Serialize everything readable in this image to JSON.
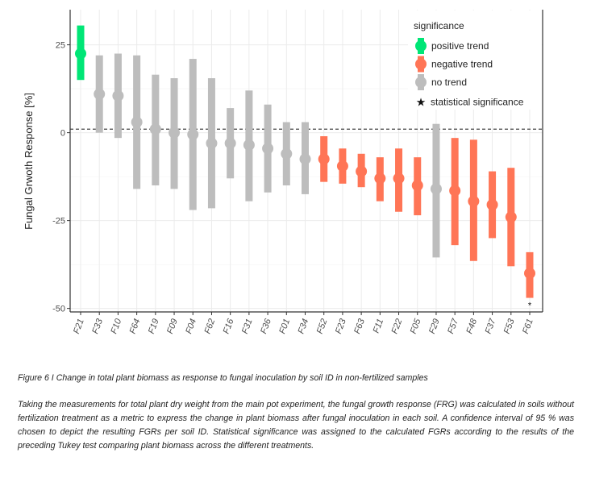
{
  "chart_data": {
    "type": "errorbar",
    "ylabel": "Fungal Grwoth Response [%]",
    "xlabel": "",
    "ylim": [
      -51,
      35
    ],
    "yticks": [
      25,
      0,
      -25,
      -50
    ],
    "reference_line": 1,
    "grid": true,
    "legend_title": "significance",
    "legend_position": "top-right",
    "legend": [
      {
        "label": "positive trend",
        "key": "positive",
        "color": "#00e676"
      },
      {
        "label": "negative trend",
        "key": "negative",
        "color": "#ff7556"
      },
      {
        "label": "no trend",
        "key": "none",
        "color": "#bdbdbd"
      },
      {
        "label": "statistical significance",
        "key": "star",
        "symbol": "★"
      }
    ],
    "points": [
      {
        "id": "F21",
        "mean": 22.5,
        "low": 15,
        "high": 30.5,
        "trend": "positive"
      },
      {
        "id": "F33",
        "mean": 11,
        "low": 0,
        "high": 22,
        "trend": "none"
      },
      {
        "id": "F10",
        "mean": 10.5,
        "low": -1.5,
        "high": 22.5,
        "trend": "none"
      },
      {
        "id": "F64",
        "mean": 3,
        "low": -16,
        "high": 22,
        "trend": "none"
      },
      {
        "id": "F19",
        "mean": 1,
        "low": -15,
        "high": 16.5,
        "trend": "none"
      },
      {
        "id": "F09",
        "mean": 0,
        "low": -16,
        "high": 15.5,
        "trend": "none"
      },
      {
        "id": "F04",
        "mean": -0.5,
        "low": -22,
        "high": 21,
        "trend": "none"
      },
      {
        "id": "F62",
        "mean": -3,
        "low": -21.5,
        "high": 15.5,
        "trend": "none"
      },
      {
        "id": "F16",
        "mean": -3,
        "low": -13,
        "high": 7,
        "trend": "none"
      },
      {
        "id": "F31",
        "mean": -3.5,
        "low": -19.5,
        "high": 12,
        "trend": "none"
      },
      {
        "id": "F36",
        "mean": -4.5,
        "low": -17,
        "high": 8,
        "trend": "none"
      },
      {
        "id": "F01",
        "mean": -6,
        "low": -15,
        "high": 3,
        "trend": "none"
      },
      {
        "id": "F34",
        "mean": -7.5,
        "low": -17.5,
        "high": 3,
        "trend": "none"
      },
      {
        "id": "F52",
        "mean": -7.5,
        "low": -14,
        "high": -1,
        "trend": "negative"
      },
      {
        "id": "F23",
        "mean": -9.5,
        "low": -14.5,
        "high": -4.5,
        "trend": "negative"
      },
      {
        "id": "F63",
        "mean": -11,
        "low": -15.5,
        "high": -6,
        "trend": "negative"
      },
      {
        "id": "F11",
        "mean": -13,
        "low": -19.5,
        "high": -7,
        "trend": "negative"
      },
      {
        "id": "F22",
        "mean": -13,
        "low": -22.5,
        "high": -4.5,
        "trend": "negative"
      },
      {
        "id": "F05",
        "mean": -15,
        "low": -23.5,
        "high": -7,
        "trend": "negative"
      },
      {
        "id": "F29",
        "mean": -16,
        "low": -35.5,
        "high": 2.5,
        "trend": "none"
      },
      {
        "id": "F57",
        "mean": -16.5,
        "low": -32,
        "high": -1.5,
        "trend": "negative"
      },
      {
        "id": "F48",
        "mean": -19.5,
        "low": -36.5,
        "high": -2,
        "trend": "negative"
      },
      {
        "id": "F37",
        "mean": -20.5,
        "low": -30,
        "high": -11,
        "trend": "negative"
      },
      {
        "id": "F53",
        "mean": -24,
        "low": -38,
        "high": -10,
        "trend": "negative"
      },
      {
        "id": "F61",
        "mean": -40,
        "low": -47,
        "high": -34,
        "trend": "negative",
        "significant": true
      }
    ]
  },
  "caption": {
    "title": "Figure 6 I Change in total plant biomass as response to fungal inoculation by soil ID in non-fertilized samples",
    "body": "Taking the measurements for total plant dry weight from the main pot experiment, the fungal growth response (FRG) was calculated in soils without fertilization treatment as a metric to express the change in plant biomass after fungal inoculation in each soil. A confidence interval of 95 % was chosen to depict the resulting FGRs per soil ID. Statistical significance was assigned to the calculated FGRs according to the results of the preceding Tukey test comparing plant biomass across the different treatments."
  }
}
